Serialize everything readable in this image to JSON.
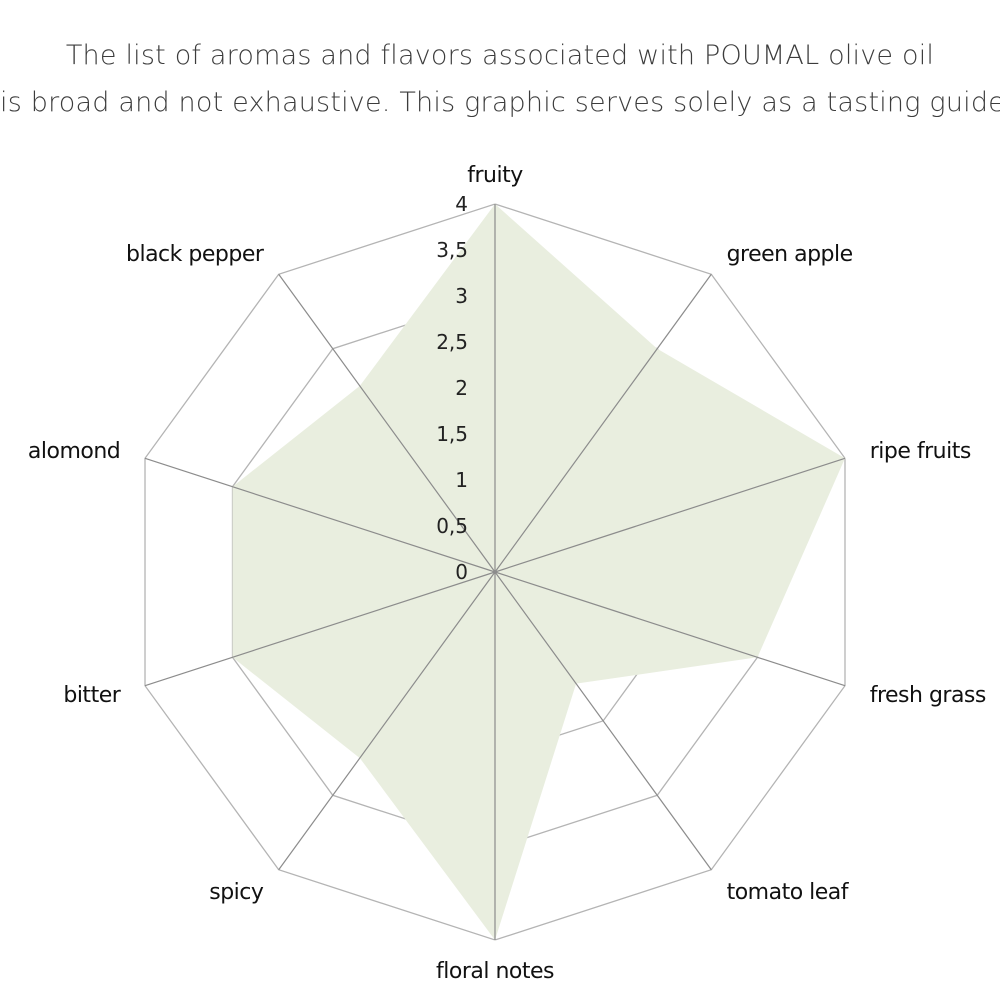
{
  "title_lines": [
    "The list of aromas and flavors associated with POUMAL olive oil",
    "is broad and not exhaustive. This graphic serves solely as a tasting guide."
  ],
  "chart_data": {
    "type": "radar",
    "categories": [
      "fruity",
      "green apple",
      "ripe fruits",
      "fresh grass",
      "tomato leaf",
      "floral notes",
      "spicy",
      "bitter",
      "alomond",
      "black pepper"
    ],
    "series": [
      {
        "values": [
          4,
          3,
          4,
          3,
          1.5,
          4,
          2.5,
          3,
          3,
          2.5
        ]
      }
    ],
    "rlim": [
      0,
      4
    ],
    "ticks": [
      "0",
      "0,5",
      "1",
      "1,5",
      "2",
      "2,5",
      "3",
      "3,5",
      "4"
    ],
    "grid_levels": [
      1,
      2,
      3,
      4
    ],
    "colors": {
      "fill": "#e9eedf",
      "grid": "#b4b4b4",
      "spoke": "#8c8c8c"
    }
  }
}
